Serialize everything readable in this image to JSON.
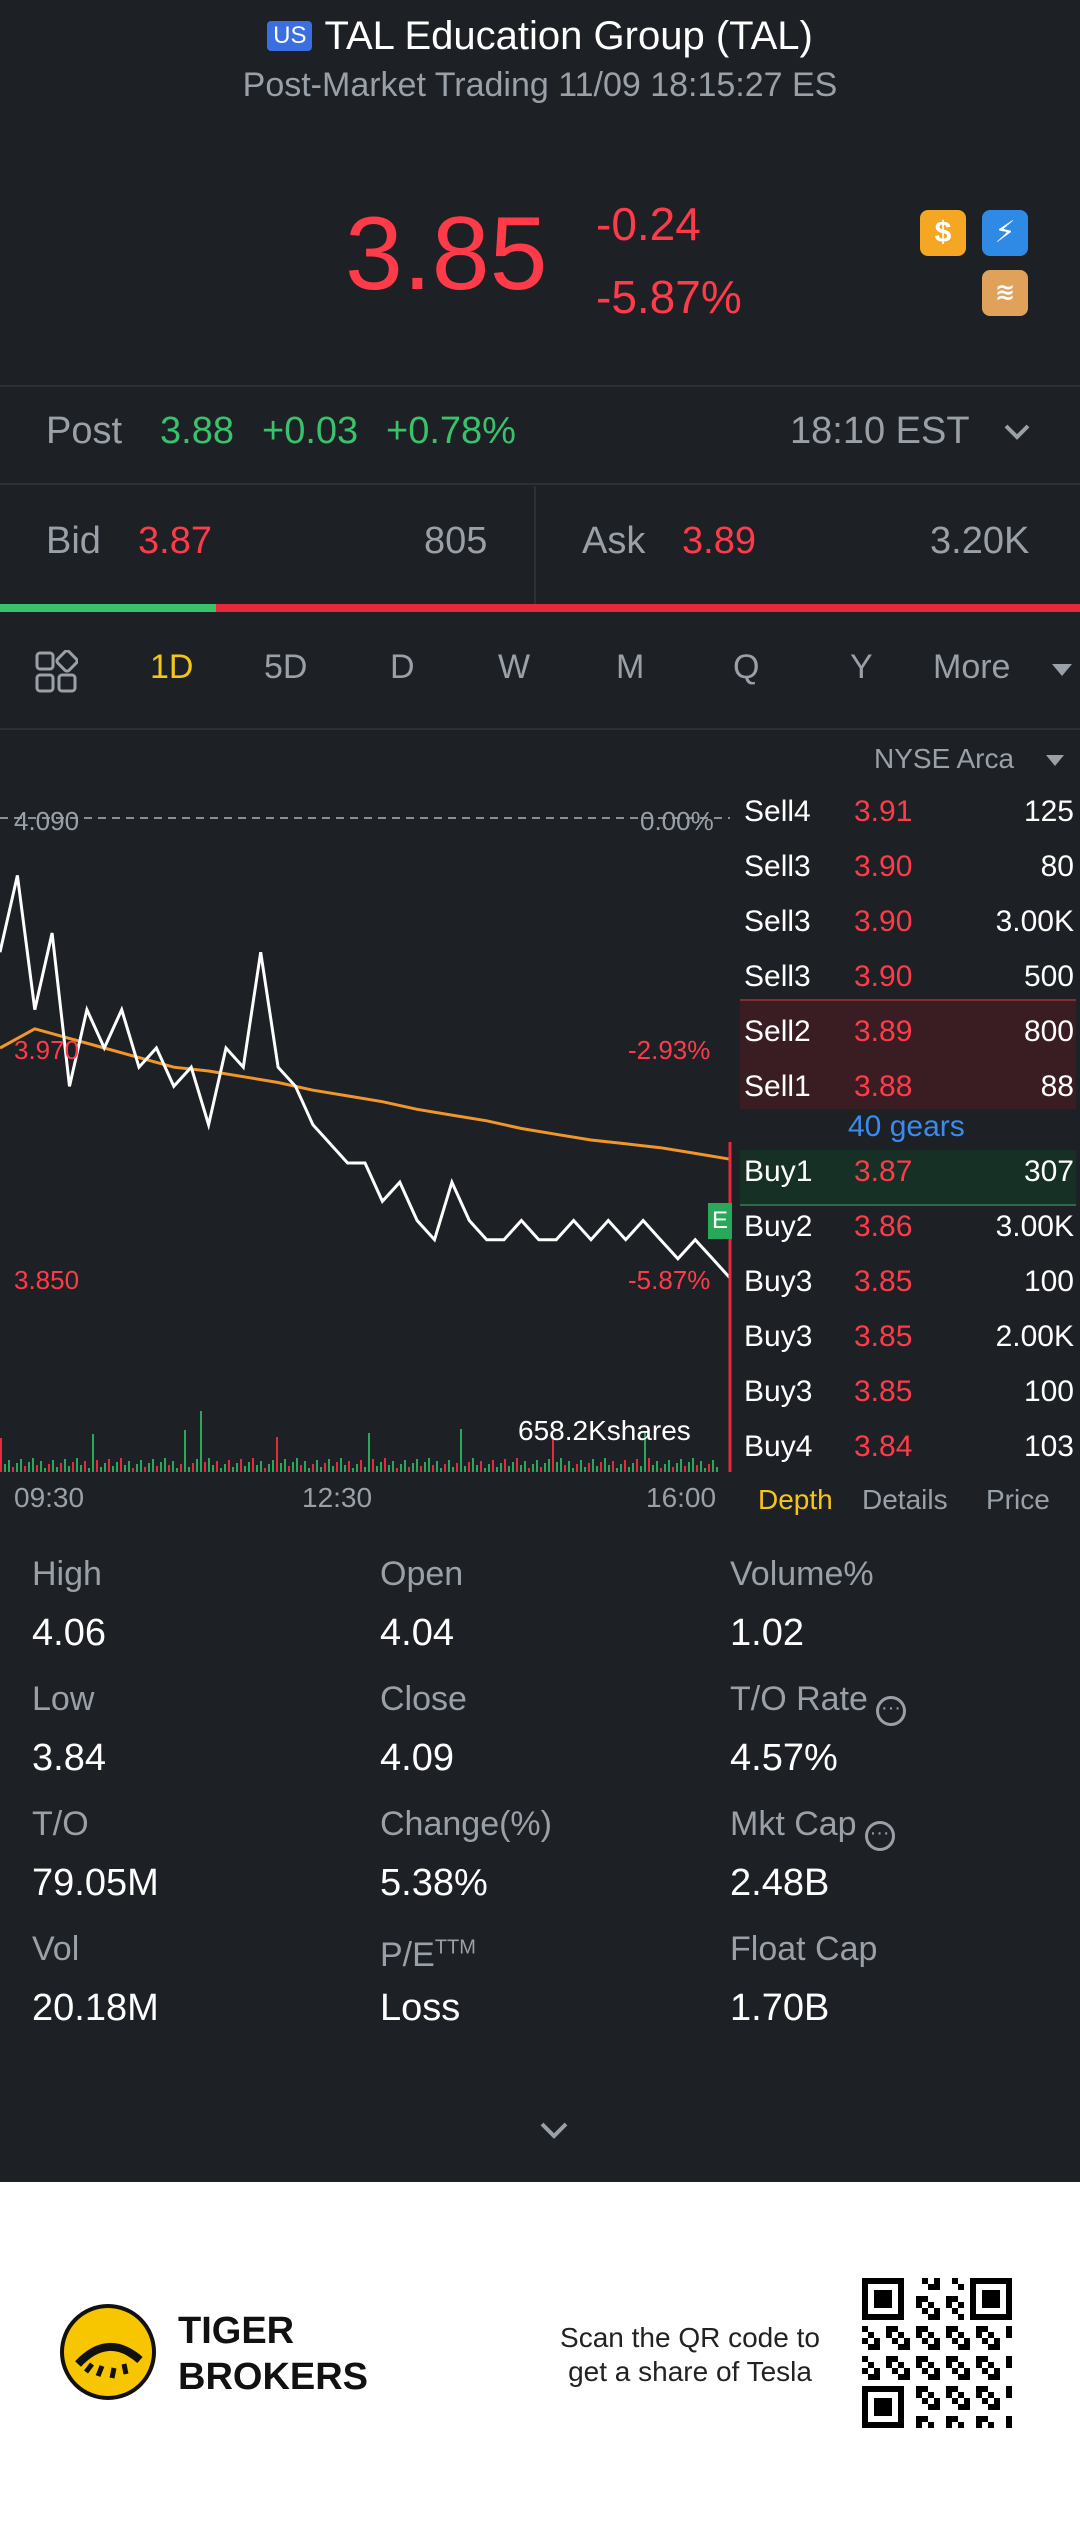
{
  "header": {
    "market_badge": "US",
    "title": "TAL Education Group (TAL)",
    "subtitle": "Post-Market Trading 11/09 18:15:27 ES"
  },
  "quote": {
    "price": "3.85",
    "change": "-0.24",
    "change_pct": "-5.87%",
    "badges": [
      "dollar-icon",
      "flash-icon",
      "layers-icon"
    ]
  },
  "post": {
    "label": "Post",
    "price": "3.88",
    "change": "+0.03",
    "change_pct": "+0.78%",
    "time": "18:10 EST"
  },
  "bidask": {
    "bid_label": "Bid",
    "bid_price": "3.87",
    "bid_size": "805",
    "ask_label": "Ask",
    "ask_price": "3.89",
    "ask_size": "3.20K",
    "bid_ratio": 0.2
  },
  "tabs": [
    "1D",
    "5D",
    "D",
    "W",
    "M",
    "Q",
    "Y",
    "More"
  ],
  "active_tab": "1D",
  "chart": {
    "exchange": "NYSE Arca",
    "prev_close": "4.090",
    "prev_close_pct": "0.00%",
    "mid_price": "3.970",
    "mid_pct": "-2.93%",
    "low_price": "3.850",
    "low_pct": "-5.87%",
    "volume_label": "658.2Kshares",
    "x_labels": [
      "09:30",
      "12:30",
      "16:00"
    ],
    "e_marker": "E"
  },
  "chart_data": {
    "type": "line",
    "ylim": [
      3.85,
      4.09
    ],
    "y_ticks": [
      "4.090",
      "3.970",
      "3.850"
    ],
    "x_ticks": [
      "09:30",
      "12:30",
      "16:00"
    ],
    "series": [
      {
        "name": "",
        "values": [
          4.02,
          4.06,
          3.99,
          4.03,
          3.95,
          3.99,
          3.97,
          3.99,
          3.96,
          3.97,
          3.95,
          3.96,
          3.93,
          3.97,
          3.96,
          4.02,
          3.96,
          3.95,
          3.93,
          3.92,
          3.91,
          3.91,
          3.89,
          3.9,
          3.88,
          3.87,
          3.9,
          3.88,
          3.87,
          3.87,
          3.88,
          3.87,
          3.87,
          3.88,
          3.87,
          3.88,
          3.87,
          3.88,
          3.87,
          3.86,
          3.87,
          3.86,
          3.85
        ]
      },
      {
        "name": "",
        "values": [
          3.97,
          3.98,
          3.975,
          3.97,
          3.965,
          3.96,
          3.958,
          3.955,
          3.952,
          3.948,
          3.945,
          3.942,
          3.938,
          3.935,
          3.932,
          3.928,
          3.925,
          3.922,
          3.92,
          3.918,
          3.915,
          3.912
        ]
      }
    ]
  },
  "orderbook": {
    "sells": [
      {
        "label": "Sell4",
        "price": "3.91",
        "vol": "125"
      },
      {
        "label": "Sell3",
        "price": "3.90",
        "vol": "80"
      },
      {
        "label": "Sell3",
        "price": "3.90",
        "vol": "3.00K"
      },
      {
        "label": "Sell3",
        "price": "3.90",
        "vol": "500"
      },
      {
        "label": "Sell2",
        "price": "3.89",
        "vol": "800"
      },
      {
        "label": "Sell1",
        "price": "3.88",
        "vol": "88"
      }
    ],
    "gears": "40 gears",
    "buys": [
      {
        "label": "Buy1",
        "price": "3.87",
        "vol": "307"
      },
      {
        "label": "Buy2",
        "price": "3.86",
        "vol": "3.00K"
      },
      {
        "label": "Buy3",
        "price": "3.85",
        "vol": "100"
      },
      {
        "label": "Buy3",
        "price": "3.85",
        "vol": "2.00K"
      },
      {
        "label": "Buy3",
        "price": "3.85",
        "vol": "100"
      },
      {
        "label": "Buy4",
        "price": "3.84",
        "vol": "103"
      }
    ],
    "tabs": [
      "Depth",
      "Details",
      "Price"
    ]
  },
  "stats": [
    [
      {
        "label": "High",
        "value": "4.06"
      },
      {
        "label": "Open",
        "value": "4.04"
      },
      {
        "label": "Volume%",
        "value": "1.02"
      }
    ],
    [
      {
        "label": "Low",
        "value": "3.84"
      },
      {
        "label": "Close",
        "value": "4.09"
      },
      {
        "label": "T/O Rate",
        "value": "4.57%"
      }
    ],
    [
      {
        "label": "T/O",
        "value": "79.05M"
      },
      {
        "label": "Change(%)",
        "value": "5.38%"
      },
      {
        "label": "Mkt Cap",
        "value": "2.48B"
      }
    ],
    [
      {
        "label": "Vol",
        "value": "20.18M"
      },
      {
        "label": "P/E",
        "value": "Loss"
      },
      {
        "label": "Float Cap",
        "value": "1.70B"
      }
    ]
  ],
  "pe_superscript": "TTM",
  "footer": {
    "brand_line1": "TIGER",
    "brand_line2": "BROKERS",
    "promo_line1": "Scan the QR code to",
    "promo_line2": "get a share of Tesla"
  }
}
